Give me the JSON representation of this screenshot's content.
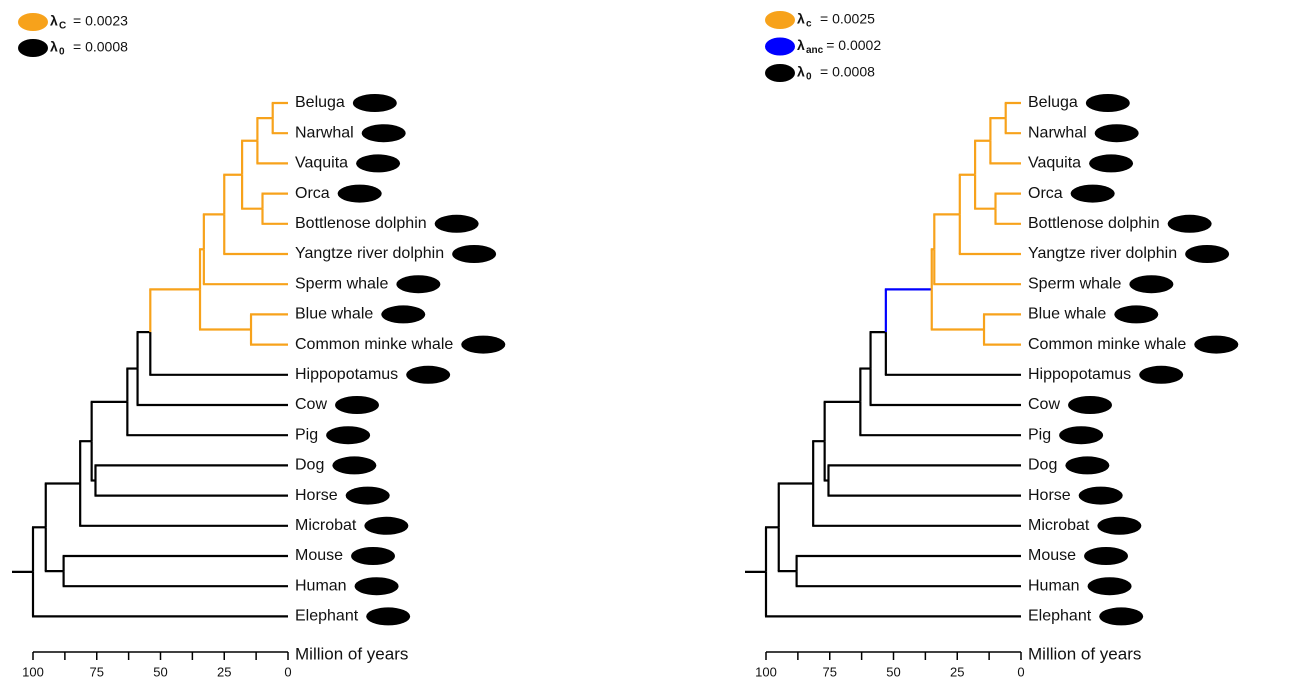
{
  "panels": [
    {
      "legend": [
        {
          "symbol": "λ",
          "subscript": "C",
          "value": "= 0.0023",
          "color": "#f7a21b"
        },
        {
          "symbol": "λ",
          "subscript": "0",
          "value": "= 0.0008",
          "color": "#000000"
        }
      ],
      "axis_label": "Million of years",
      "xlim": [
        100,
        0
      ],
      "xticks": [
        100,
        75,
        50,
        25,
        0
      ],
      "minor_ticks": [
        87.5,
        62.5,
        37.5,
        12.5
      ],
      "tree": {
        "age": 100,
        "color": "#000000",
        "children": [
          {
            "age": 95,
            "children": [
              {
                "age": 81.5,
                "children": [
                  {
                    "age": 77,
                    "children": [
                      {
                        "age": 63,
                        "children": [
                          {
                            "age": 59,
                            "children": [
                              {
                                "age": 54,
                                "children": [
                                  {
                                    "age": 34.5,
                                    "color": "#f7a21b",
                                    "children": [
                                      {
                                        "age": 33,
                                        "children": [
                                          {
                                            "age": 25,
                                            "children": [
                                              {
                                                "age": 18,
                                                "children": [
                                                  {
                                                    "age": 12,
                                                    "children": [
                                                      {
                                                        "age": 6,
                                                        "children": [
                                                          {
                                                            "name": "Beluga"
                                                          },
                                                          {
                                                            "name": "Narwhal"
                                                          }
                                                        ]
                                                      },
                                                      {
                                                        "name": "Vaquita"
                                                      }
                                                    ]
                                                  },
                                                  {
                                                    "age": 10,
                                                    "children": [
                                                      {
                                                        "name": "Orca"
                                                      },
                                                      {
                                                        "name": "Bottlenose dolphin"
                                                      }
                                                    ]
                                                  }
                                                ]
                                              },
                                              {
                                                "name": "Yangtze river dolphin"
                                              }
                                            ]
                                          },
                                          {
                                            "name": "Sperm whale"
                                          }
                                        ]
                                      },
                                      {
                                        "age": 14.5,
                                        "children": [
                                          {
                                            "name": "Blue whale"
                                          },
                                          {
                                            "name": "Common minke whale"
                                          }
                                        ]
                                      }
                                    ]
                                  },
                                  {
                                    "name": "Hippopotamus"
                                  }
                                ]
                              },
                              {
                                "name": "Cow"
                              }
                            ]
                          },
                          {
                            "name": "Pig"
                          }
                        ]
                      },
                      {
                        "age": 75.5,
                        "children": [
                          {
                            "name": "Dog"
                          },
                          {
                            "name": "Horse"
                          }
                        ]
                      }
                    ]
                  },
                  {
                    "name": "Microbat"
                  }
                ]
              },
              {
                "age": 88,
                "children": [
                  {
                    "name": "Mouse"
                  },
                  {
                    "name": "Human"
                  }
                ]
              }
            ]
          },
          {
            "name": "Elephant"
          }
        ]
      }
    },
    {
      "legend": [
        {
          "symbol": "λ",
          "subscript": "c",
          "value": "= 0.0025",
          "color": "#f7a21b"
        },
        {
          "symbol": "λ",
          "subscript": "anc",
          "value": "= 0.0002",
          "color": "#0000ff"
        },
        {
          "symbol": "λ",
          "subscript": "0",
          "value": "= 0.0008",
          "color": "#000000"
        }
      ],
      "axis_label": "Million of years",
      "xlim": [
        100,
        0
      ],
      "xticks": [
        100,
        75,
        50,
        25,
        0
      ],
      "minor_ticks": [
        87.5,
        62.5,
        37.5,
        12.5
      ],
      "tree": {
        "age": 100,
        "color": "#000000",
        "children": [
          {
            "age": 95,
            "children": [
              {
                "age": 81.5,
                "children": [
                  {
                    "age": 77,
                    "children": [
                      {
                        "age": 63,
                        "children": [
                          {
                            "age": 59,
                            "children": [
                              {
                                "age": 53,
                                "children": [
                                  {
                                    "age": 35,
                                    "color": "#0000ff",
                                    "children": [
                                      {
                                        "age": 34,
                                        "color": "#f7a21b",
                                        "children": [
                                          {
                                            "age": 24,
                                            "children": [
                                              {
                                                "age": 18,
                                                "children": [
                                                  {
                                                    "age": 12,
                                                    "children": [
                                                      {
                                                        "age": 6,
                                                        "children": [
                                                          {
                                                            "name": "Beluga"
                                                          },
                                                          {
                                                            "name": "Narwhal"
                                                          }
                                                        ]
                                                      },
                                                      {
                                                        "name": "Vaquita"
                                                      }
                                                    ]
                                                  },
                                                  {
                                                    "age": 10,
                                                    "children": [
                                                      {
                                                        "name": "Orca"
                                                      },
                                                      {
                                                        "name": "Bottlenose dolphin"
                                                      }
                                                    ]
                                                  }
                                                ]
                                              },
                                              {
                                                "name": "Yangtze river dolphin"
                                              }
                                            ]
                                          },
                                          {
                                            "name": "Sperm whale"
                                          }
                                        ]
                                      },
                                      {
                                        "age": 14.5,
                                        "color": "#f7a21b",
                                        "children": [
                                          {
                                            "name": "Blue whale"
                                          },
                                          {
                                            "name": "Common minke whale"
                                          }
                                        ]
                                      }
                                    ]
                                  },
                                  {
                                    "name": "Hippopotamus"
                                  }
                                ]
                              },
                              {
                                "name": "Cow"
                              }
                            ]
                          },
                          {
                            "name": "Pig"
                          }
                        ]
                      },
                      {
                        "age": 75.5,
                        "children": [
                          {
                            "name": "Dog"
                          },
                          {
                            "name": "Horse"
                          }
                        ]
                      }
                    ]
                  },
                  {
                    "name": "Microbat"
                  }
                ]
              },
              {
                "age": 88,
                "children": [
                  {
                    "name": "Mouse"
                  },
                  {
                    "name": "Human"
                  }
                ]
              }
            ]
          },
          {
            "name": "Elephant"
          }
        ]
      }
    }
  ]
}
